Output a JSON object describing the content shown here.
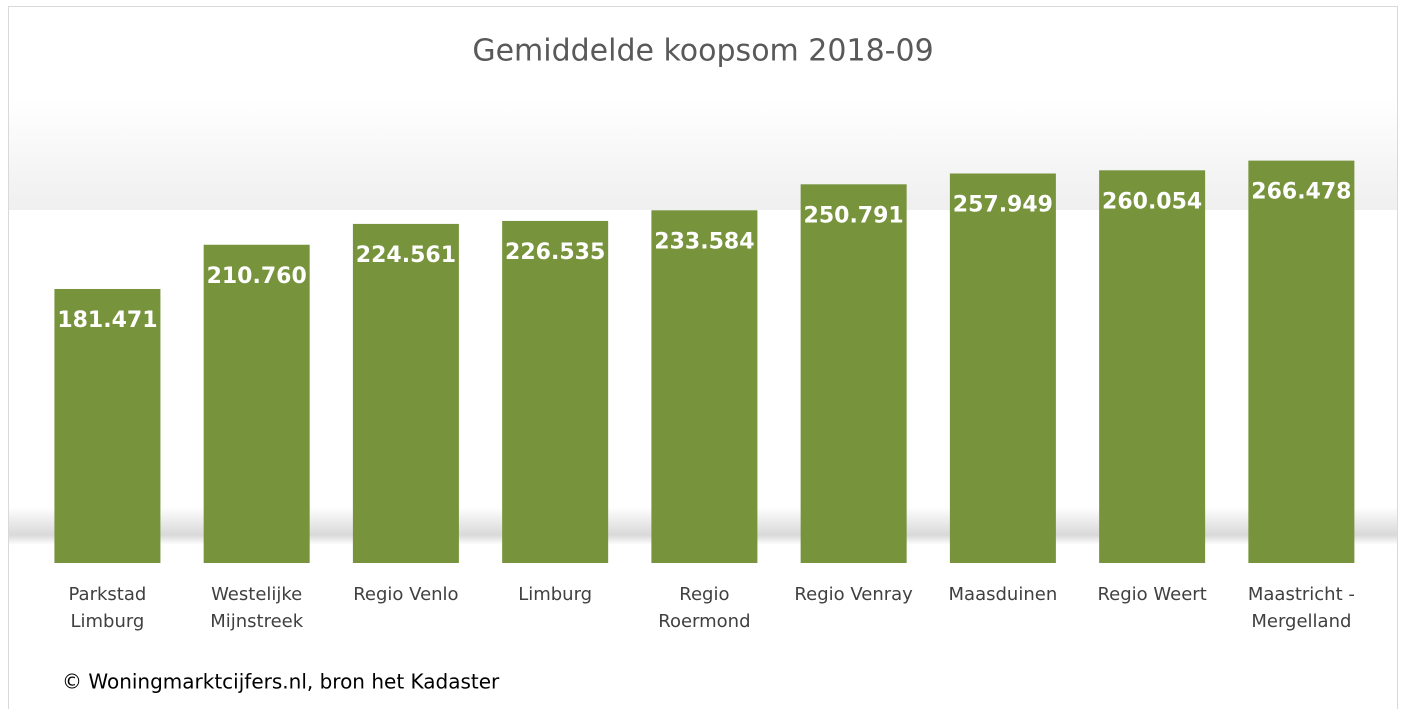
{
  "chart_data": {
    "type": "bar",
    "title": "Gemiddelde koopsom 2018-09",
    "categories": [
      "Parkstad\nLimburg",
      "Westelijke\nMijnstreek",
      "Regio Venlo",
      "Limburg",
      "Regio\nRoermond",
      "Regio Venray",
      "Maasduinen",
      "Regio Weert",
      "Maastricht -\nMergelland"
    ],
    "values": [
      181471,
      210760,
      224561,
      226535,
      233584,
      250791,
      257949,
      260054,
      266478
    ],
    "value_labels": [
      "181.471",
      "210.760",
      "224.561",
      "226.535",
      "233.584",
      "250.791",
      "257.949",
      "260.054",
      "266.478"
    ],
    "color": "#77933c",
    "ylim": [
      0,
      300000
    ],
    "source": "© Woningmarktcijfers.nl, bron het Kadaster"
  }
}
